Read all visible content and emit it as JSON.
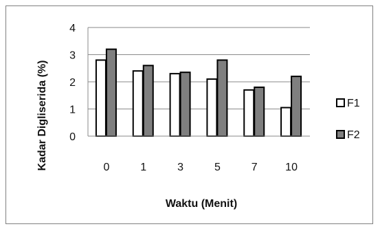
{
  "chart_data": {
    "type": "bar",
    "title": "",
    "xlabel": "Waktu (Menit)",
    "ylabel": "Kadar Digliserida (%)",
    "categories": [
      "0",
      "1",
      "3",
      "5",
      "7",
      "10"
    ],
    "ylim": [
      0,
      4
    ],
    "yticks": [
      0,
      1,
      2,
      3,
      4
    ],
    "grid": true,
    "legend_position": "right",
    "series": [
      {
        "name": "F1",
        "color": "#ffffff",
        "values": [
          2.8,
          2.4,
          2.3,
          2.1,
          1.7,
          1.05
        ]
      },
      {
        "name": "F2",
        "color": "#7f7f7f",
        "values": [
          3.2,
          2.6,
          2.35,
          2.8,
          1.8,
          2.2
        ]
      }
    ]
  }
}
